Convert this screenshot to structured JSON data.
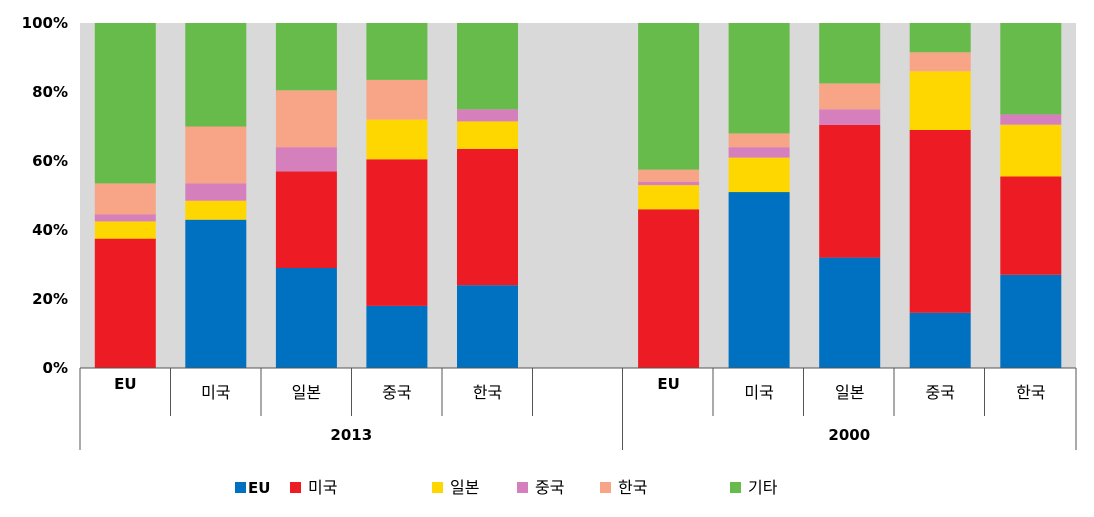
{
  "chart_data": {
    "type": "bar",
    "stacked": true,
    "normalized": true,
    "ylim": [
      0,
      100
    ],
    "y_ticks": [
      "0%",
      "20%",
      "40%",
      "60%",
      "80%",
      "100%"
    ],
    "grid": false,
    "legend_position": "bottom",
    "groups": [
      {
        "label": "2013",
        "categories": [
          "EU",
          "미국",
          "일본",
          "중국",
          "한국"
        ],
        "include_blank_slot": true
      },
      {
        "label": "2000",
        "categories": [
          "EU",
          "미국",
          "일본",
          "중국",
          "한국"
        ],
        "include_blank_slot": false
      }
    ],
    "series": [
      {
        "name": "EU",
        "color": "#0070C0",
        "values_2013": [
          0,
          43,
          29,
          18,
          24
        ],
        "values_2000": [
          0,
          51,
          32,
          16,
          27
        ]
      },
      {
        "name": "미국",
        "color": "#ED1C24",
        "values_2013": [
          37.5,
          0,
          28,
          42.5,
          39.5
        ],
        "values_2000": [
          46,
          0,
          38.5,
          53,
          28.5
        ]
      },
      {
        "name": "일본",
        "color": "#FFD700",
        "values_2013": [
          5,
          5.5,
          0,
          11.5,
          8
        ],
        "values_2000": [
          7,
          10,
          0,
          17,
          15
        ]
      },
      {
        "name": "중국",
        "color": "#D57FBC",
        "values_2013": [
          2,
          5,
          7,
          0,
          3.5
        ],
        "values_2000": [
          1,
          3,
          4.5,
          0,
          3
        ]
      },
      {
        "name": "한국",
        "color": "#F7A586",
        "values_2013": [
          9,
          16.5,
          16.5,
          11.5,
          0
        ],
        "values_2000": [
          3.5,
          4,
          7.5,
          5.5,
          0
        ]
      },
      {
        "name": "기타",
        "color": "#67BB4A",
        "values_2013": [
          46.5,
          30,
          19.5,
          16.5,
          25
        ],
        "values_2000": [
          42.5,
          32,
          17.5,
          8.5,
          26.5
        ]
      }
    ]
  }
}
